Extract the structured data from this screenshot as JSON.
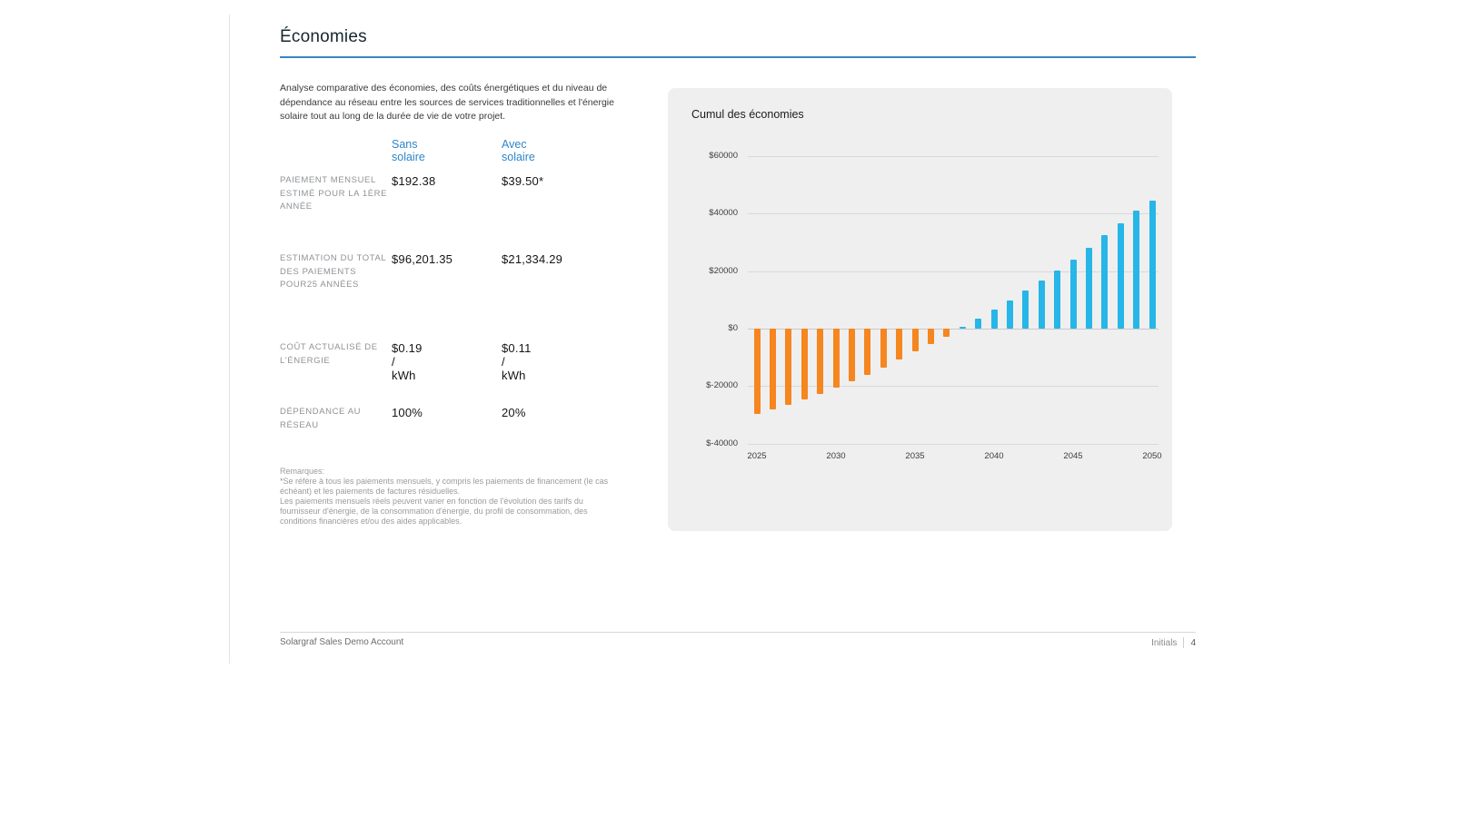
{
  "page": {
    "title": "Économies",
    "description": "Analyse comparative des économies, des coûts énergétiques et du niveau de dépendance au réseau entre les sources de services traditionnelles et l'énergie solaire tout au long de la durée de vie de votre projet."
  },
  "comparison_table": {
    "columns": [
      "Sans solaire",
      "Avec solaire"
    ],
    "rows": [
      {
        "label": "Paiement mensuel estimé pour la 1ère année",
        "sans_solaire": "$192.38",
        "avec_solaire": "$39.50*"
      },
      {
        "label": "Estimation du total des paiements pour25 années",
        "sans_solaire": "$96,201.35",
        "avec_solaire": "$21,334.29"
      },
      {
        "label": "Coût actualisé de l'énergie",
        "sans_solaire": "$0.19 / kWh",
        "avec_solaire": "$0.11 / kWh"
      },
      {
        "label": "Dépendance au réseau",
        "sans_solaire": "100%",
        "avec_solaire": "20%"
      }
    ]
  },
  "notes": {
    "title": "Remarques:",
    "lines": [
      "*Se réfère à tous les paiements mensuels, y compris les paiements de financement (le cas échéant) et les paiements de factures résiduelles.",
      "Les paiements mensuels réels peuvent varier en fonction de l'évolution des tarifs du fournisseur d'énergie, de la consommation d'énergie, du profil de consommation, des conditions financières et/ou des aides applicables."
    ]
  },
  "chart_data": {
    "type": "bar",
    "title": "Cumul des économies",
    "x": [
      2025,
      2026,
      2027,
      2028,
      2029,
      2030,
      2031,
      2032,
      2033,
      2034,
      2035,
      2036,
      2037,
      2038,
      2039,
      2040,
      2041,
      2042,
      2043,
      2044,
      2045,
      2046,
      2047,
      2048,
      2049,
      2050
    ],
    "values": [
      -29800,
      -28300,
      -26600,
      -24800,
      -22800,
      -20700,
      -18400,
      -16000,
      -13500,
      -10800,
      -8000,
      -5400,
      -2800,
      700,
      3600,
      6600,
      9700,
      13100,
      16600,
      20300,
      24100,
      28200,
      32400,
      36700,
      41000,
      44500
    ],
    "ylim": [
      -40000,
      60000
    ],
    "ytick_interval": 20000,
    "ytick_labels": [
      "$60000",
      "$40000",
      "$20000",
      "$0",
      "$-20000",
      "$-40000"
    ],
    "xtick_labels": [
      "2025",
      "2030",
      "2035",
      "2040",
      "2045",
      "2050"
    ],
    "grid": true,
    "legend": false,
    "colors": {
      "positive": "#26b6e7",
      "negative": "#f6861f",
      "card_background": "#efefef",
      "gridline": "#d9d9d9"
    }
  },
  "footer": {
    "left": "Solargraf Sales Demo Account",
    "right_label": "Initials",
    "page_number": "4"
  },
  "theme": {
    "accent_blue": "#2e86c8",
    "rule_blue": "#3c84c6"
  }
}
